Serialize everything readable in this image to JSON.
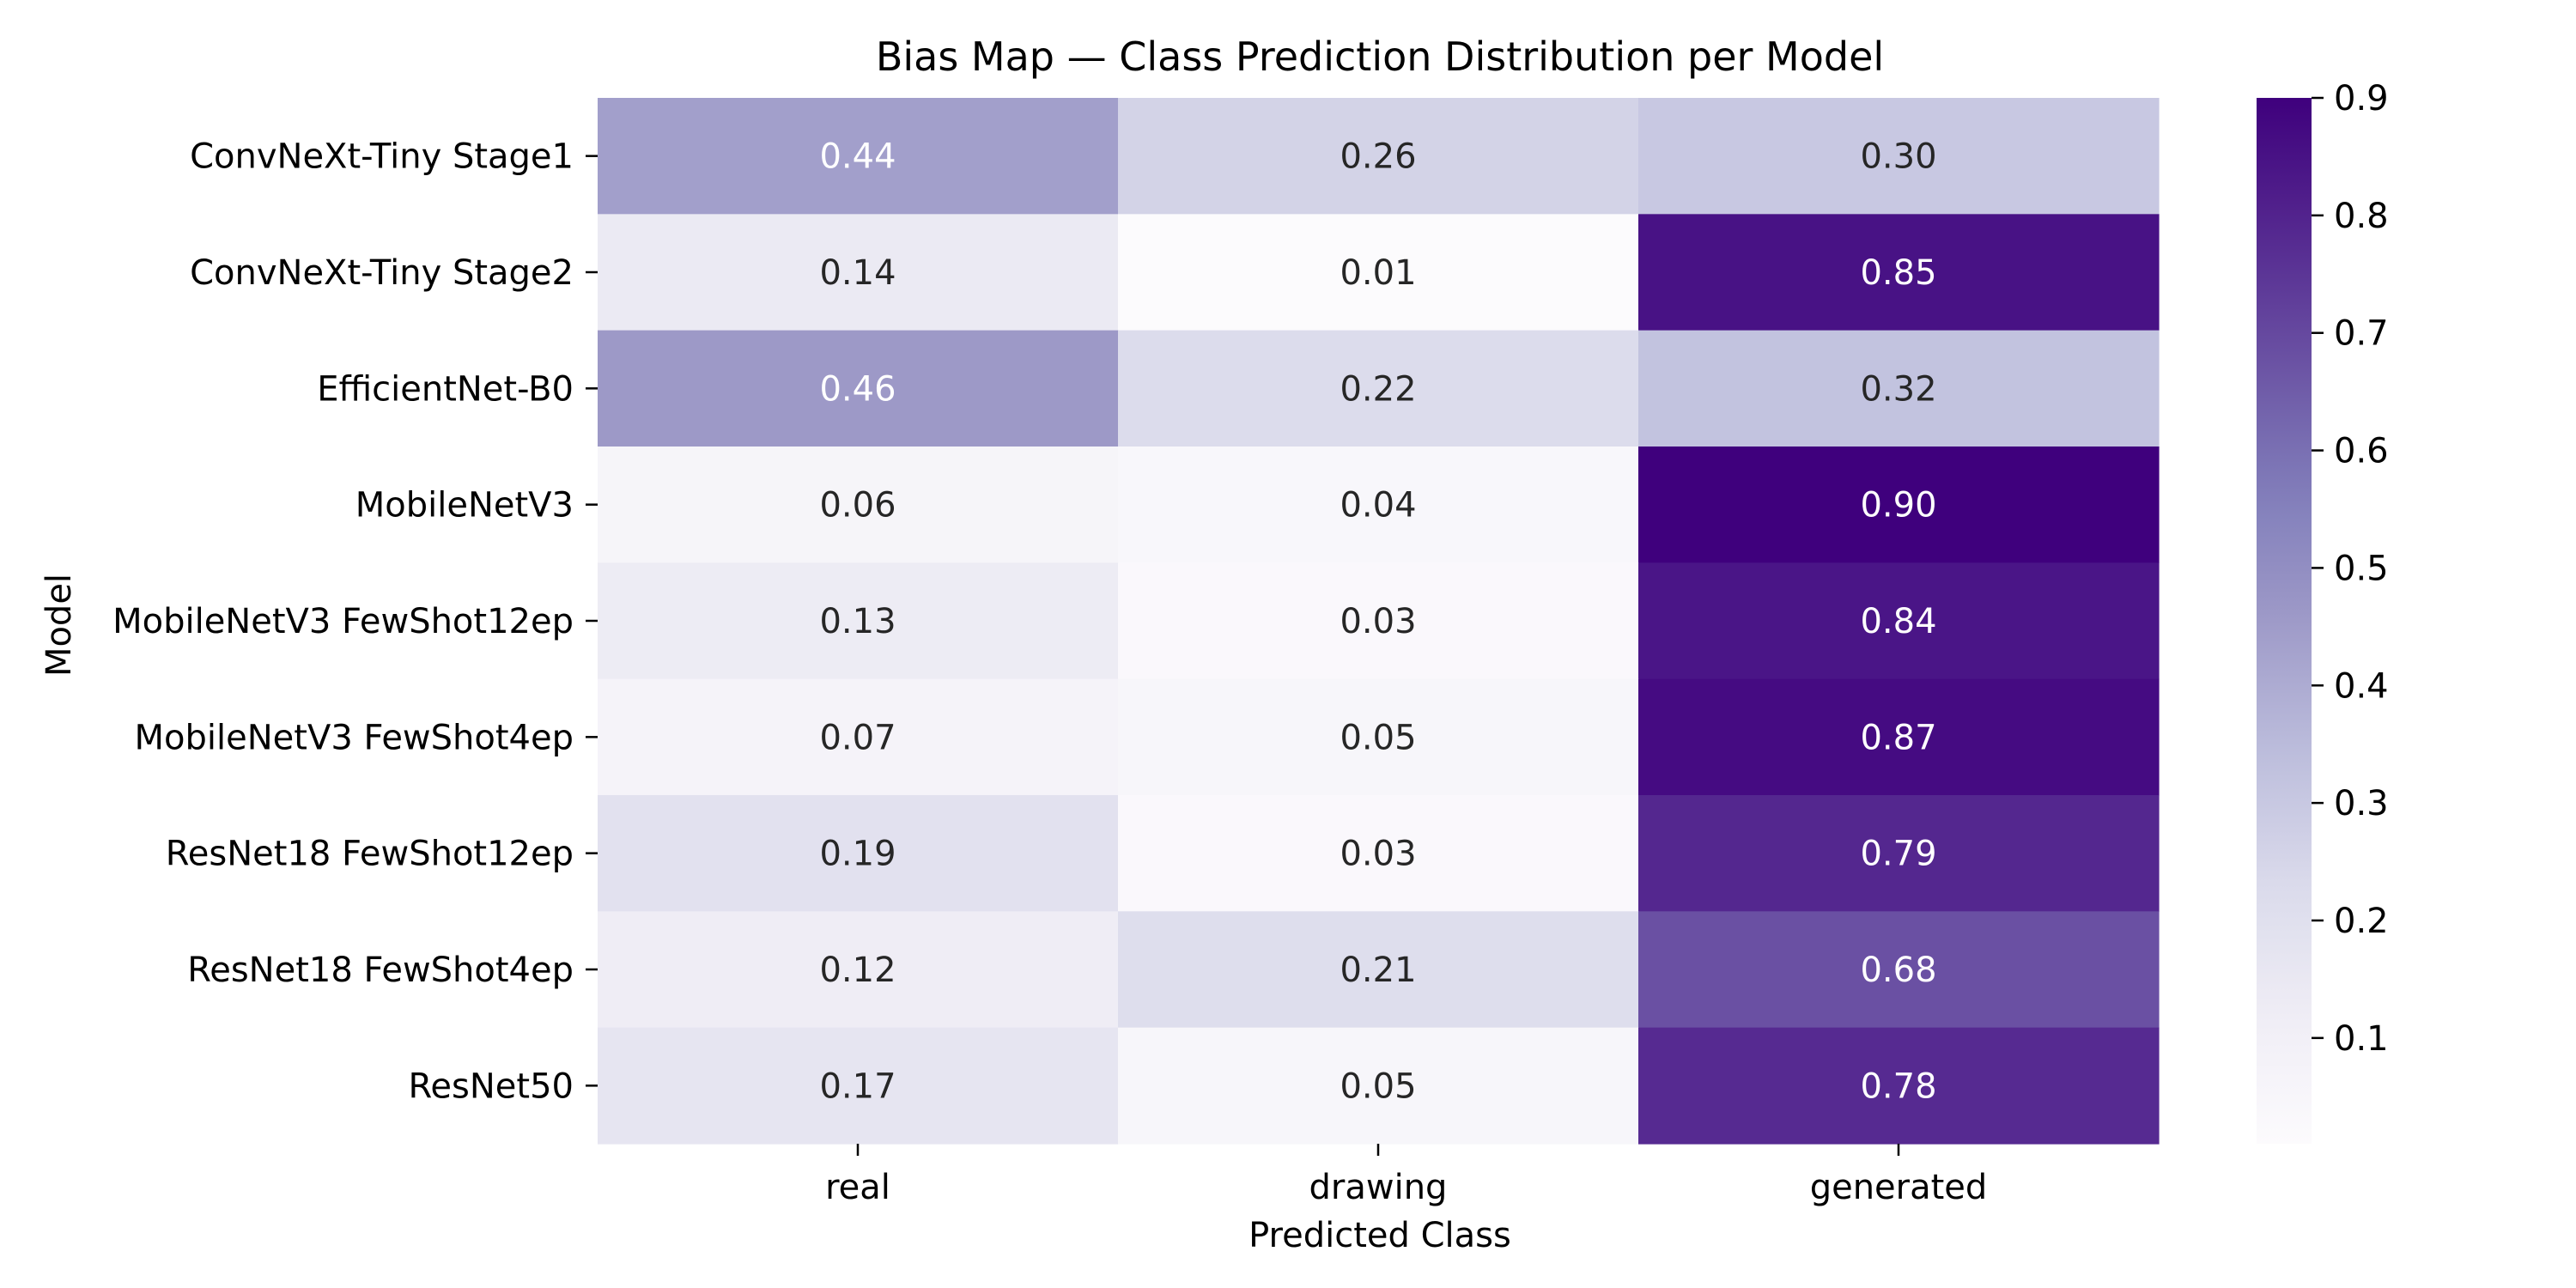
{
  "chart_data": {
    "type": "heatmap",
    "title": "Bias Map — Class Prediction Distribution per Model",
    "xlabel": "Predicted Class",
    "ylabel": "Model",
    "x_categories": [
      "real",
      "drawing",
      "generated"
    ],
    "y_categories": [
      "ConvNeXt-Tiny Stage1",
      "ConvNeXt-Tiny Stage2",
      "EfficientNet-B0",
      "MobileNetV3",
      "MobileNetV3 FewShot12ep",
      "MobileNetV3 FewShot4ep",
      "ResNet18 FewShot12ep",
      "ResNet18 FewShot4ep",
      "ResNet50"
    ],
    "values": [
      [
        0.44,
        0.26,
        0.3
      ],
      [
        0.14,
        0.01,
        0.85
      ],
      [
        0.46,
        0.22,
        0.32
      ],
      [
        0.06,
        0.04,
        0.9
      ],
      [
        0.13,
        0.03,
        0.84
      ],
      [
        0.07,
        0.05,
        0.87
      ],
      [
        0.19,
        0.03,
        0.79
      ],
      [
        0.12,
        0.21,
        0.68
      ],
      [
        0.17,
        0.05,
        0.78
      ]
    ],
    "colormap": "Purples",
    "colorbar": {
      "min": 0.01,
      "max": 0.9,
      "ticks": [
        0.1,
        0.2,
        0.3,
        0.4,
        0.5,
        0.6,
        0.7,
        0.8,
        0.9
      ],
      "position": "right"
    },
    "annotation_format": "0.00",
    "grid": false
  }
}
